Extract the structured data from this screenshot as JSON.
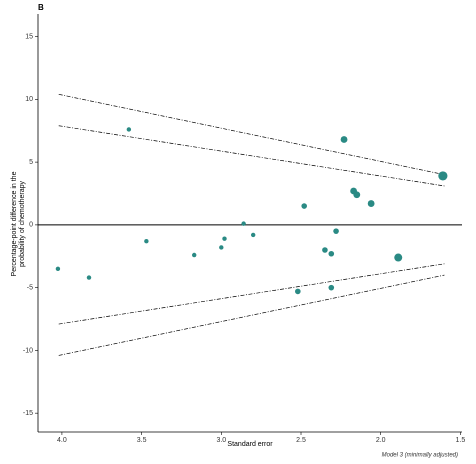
{
  "chart_data": {
    "type": "scatter",
    "panel_label": "B",
    "xlabel": "Standard error",
    "ylabel": [
      "Percentage-point difference in the",
      "probability of chemotherapy"
    ],
    "caption": "Model 3 (minimally adjusted)",
    "xlim": [
      4.15,
      1.49
    ],
    "ylim": [
      -16.5,
      16.8
    ],
    "xticks": [
      {
        "value": 4,
        "label": "4.0"
      },
      {
        "value": 3.5,
        "label": "3.5"
      },
      {
        "value": 3,
        "label": "3.0"
      },
      {
        "value": 2.5,
        "label": "2.5"
      },
      {
        "value": 2,
        "label": "2.0"
      },
      {
        "value": 1.5,
        "label": "1.5"
      }
    ],
    "yticks": [
      15,
      10,
      5,
      0,
      -5,
      -10,
      -15
    ],
    "hline": 0,
    "series": [
      {
        "color": "#2a8a84",
        "x": [
          4.025,
          3.83,
          3.58,
          3.47,
          3.17,
          3.0,
          2.98,
          2.86,
          2.8,
          2.52,
          2.48,
          2.35,
          2.31,
          2.31,
          2.28,
          2.23,
          2.17,
          2.15,
          2.06,
          1.89,
          1.61
        ],
        "values": [
          -3.5,
          -4.2,
          7.6,
          -1.3,
          -2.4,
          -1.8,
          -1.1,
          0.1,
          -0.8,
          -5.3,
          1.5,
          -2.0,
          -2.3,
          -5.0,
          -0.5,
          6.8,
          2.7,
          2.4,
          1.7,
          -2.6,
          3.9
        ],
        "sizes": [
          1,
          1,
          1,
          1,
          1,
          1,
          1,
          1,
          1,
          2,
          2,
          2,
          2,
          2,
          2,
          3,
          3,
          3,
          3,
          4,
          5
        ]
      }
    ],
    "funnel_lines": {
      "color": "#000",
      "lines": [
        {
          "x": [
            4.02,
            1.6
          ],
          "values": [
            10.4,
            4.0
          ]
        },
        {
          "x": [
            4.02,
            1.6
          ],
          "values": [
            7.9,
            3.1
          ]
        },
        {
          "x": [
            4.02,
            1.6
          ],
          "values": [
            -7.9,
            -3.1
          ]
        },
        {
          "x": [
            4.02,
            1.6
          ],
          "values": [
            -10.4,
            -4.0
          ]
        }
      ]
    }
  }
}
